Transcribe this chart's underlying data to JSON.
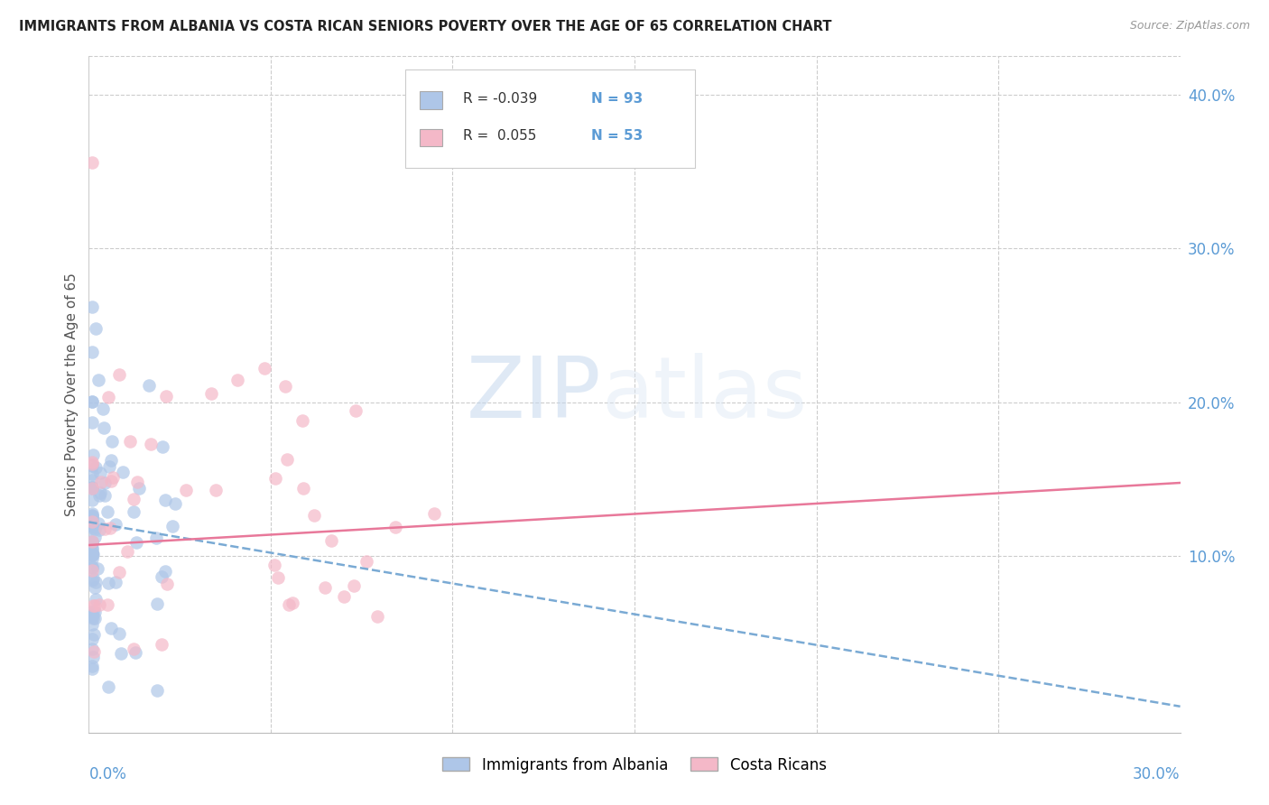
{
  "title": "IMMIGRANTS FROM ALBANIA VS COSTA RICAN SENIORS POVERTY OVER THE AGE OF 65 CORRELATION CHART",
  "source": "Source: ZipAtlas.com",
  "ylabel": "Seniors Poverty Over the Age of 65",
  "right_yticks": [
    "10.0%",
    "20.0%",
    "30.0%",
    "40.0%"
  ],
  "right_ytick_vals": [
    0.1,
    0.2,
    0.3,
    0.4
  ],
  "xlim": [
    0.0,
    0.3
  ],
  "ylim": [
    -0.015,
    0.425
  ],
  "color_albania": "#aec6e8",
  "color_costarica": "#f4b8c8",
  "trendline_albania_color": "#7aaad4",
  "trendline_costarica_color": "#e8789a",
  "watermark_zip": "ZIP",
  "watermark_atlas": "atlas",
  "legend_label1": "Immigrants from Albania",
  "legend_label2": "Costa Ricans",
  "alb_intercept": 0.122,
  "alb_slope": -0.4,
  "cr_intercept": 0.107,
  "cr_slope": 0.135
}
